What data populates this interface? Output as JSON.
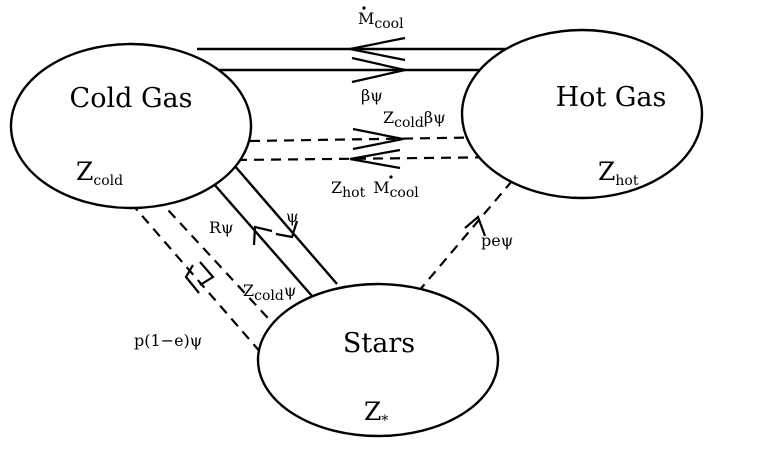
{
  "nodes": {
    "cold_gas": {
      "name": "Cold Gas",
      "z_base": "Z",
      "z_sub": "cold"
    },
    "hot_gas": {
      "name": "Hot Gas",
      "z_base": "Z",
      "z_sub": "hot"
    },
    "stars": {
      "name": "Stars",
      "z_base": "Z",
      "z_sub": "*"
    }
  },
  "flows": {
    "mdot_cool_top": {
      "base": "M",
      "sub": "cool"
    },
    "beta_psi": "βψ",
    "zcold_beta_psi": {
      "base": "Z",
      "sub": "cold",
      "tail": "βψ"
    },
    "zhot_mdot_cool": {
      "base1": "Z",
      "sub1": "hot",
      "base2": "M",
      "sub2": "cool"
    },
    "r_psi": "Rψ",
    "psi": "ψ",
    "zcold_psi": {
      "base": "Z",
      "sub": "cold",
      "tail": "ψ"
    },
    "p_one_minus_e_psi": "p(1−e)ψ",
    "pe_psi": "peψ"
  }
}
